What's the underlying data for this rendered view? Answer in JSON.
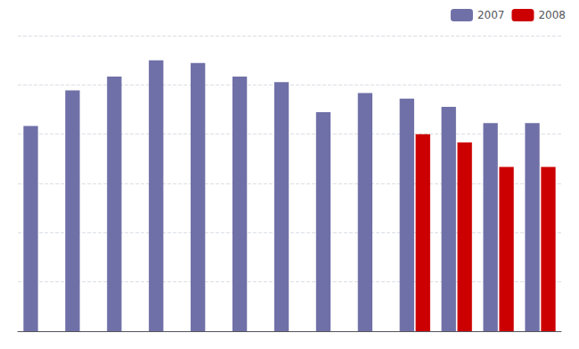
{
  "chart_data": {
    "type": "bar",
    "categories": [
      null,
      null,
      null,
      null,
      null,
      null,
      null,
      null,
      null,
      null,
      null,
      null,
      null
    ],
    "series": [
      {
        "name": "2007",
        "color": "#7070a8",
        "values": [
          75,
          88,
          93,
          99,
          98,
          93,
          91,
          80,
          87,
          85,
          82,
          76,
          76
        ]
      },
      {
        "name": "2008",
        "color": "#cc0000",
        "values": [
          null,
          null,
          null,
          null,
          null,
          null,
          null,
          null,
          null,
          72,
          69,
          60,
          60
        ]
      }
    ],
    "ylim": [
      0,
      108
    ],
    "yticks": [
      18,
      36,
      54,
      72,
      90,
      108
    ],
    "grid": true,
    "legend": "upper right",
    "tick_labels": false
  }
}
